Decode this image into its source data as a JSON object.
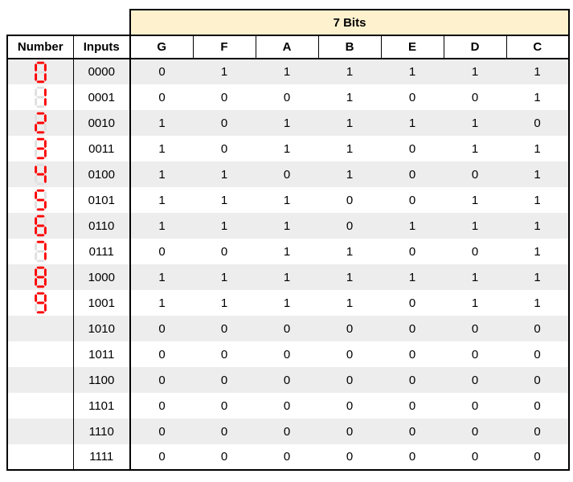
{
  "title_band": {
    "label": "7 Bits"
  },
  "columns": {
    "number": "Number",
    "inputs": "Inputs",
    "bits": [
      "G",
      "F",
      "A",
      "B",
      "E",
      "D",
      "C"
    ]
  },
  "rows": [
    {
      "digit": "0",
      "inputs": "0000",
      "bits": [
        0,
        1,
        1,
        1,
        1,
        1,
        1
      ]
    },
    {
      "digit": "1",
      "inputs": "0001",
      "bits": [
        0,
        0,
        0,
        1,
        0,
        0,
        1
      ]
    },
    {
      "digit": "2",
      "inputs": "0010",
      "bits": [
        1,
        0,
        1,
        1,
        1,
        1,
        0
      ]
    },
    {
      "digit": "3",
      "inputs": "0011",
      "bits": [
        1,
        0,
        1,
        1,
        0,
        1,
        1
      ]
    },
    {
      "digit": "4",
      "inputs": "0100",
      "bits": [
        1,
        1,
        0,
        1,
        0,
        0,
        1
      ]
    },
    {
      "digit": "5",
      "inputs": "0101",
      "bits": [
        1,
        1,
        1,
        0,
        0,
        1,
        1
      ]
    },
    {
      "digit": "6",
      "inputs": "0110",
      "bits": [
        1,
        1,
        1,
        0,
        1,
        1,
        1
      ]
    },
    {
      "digit": "7",
      "inputs": "0111",
      "bits": [
        0,
        0,
        1,
        1,
        0,
        0,
        1
      ]
    },
    {
      "digit": "8",
      "inputs": "1000",
      "bits": [
        1,
        1,
        1,
        1,
        1,
        1,
        1
      ]
    },
    {
      "digit": "9",
      "inputs": "1001",
      "bits": [
        1,
        1,
        1,
        1,
        0,
        1,
        1
      ]
    },
    {
      "digit": null,
      "inputs": "1010",
      "bits": [
        0,
        0,
        0,
        0,
        0,
        0,
        0
      ]
    },
    {
      "digit": null,
      "inputs": "1011",
      "bits": [
        0,
        0,
        0,
        0,
        0,
        0,
        0
      ]
    },
    {
      "digit": null,
      "inputs": "1100",
      "bits": [
        0,
        0,
        0,
        0,
        0,
        0,
        0
      ]
    },
    {
      "digit": null,
      "inputs": "1101",
      "bits": [
        0,
        0,
        0,
        0,
        0,
        0,
        0
      ]
    },
    {
      "digit": null,
      "inputs": "1110",
      "bits": [
        0,
        0,
        0,
        0,
        0,
        0,
        0
      ]
    },
    {
      "digit": null,
      "inputs": "1111",
      "bits": [
        0,
        0,
        0,
        0,
        0,
        0,
        0
      ]
    }
  ],
  "colors": {
    "band_bg": "#FDF1CE",
    "row_alt_bg": "#EDEDED",
    "segment_on": "#FF0000",
    "segment_off": "#E0E0E0",
    "border": "#000000"
  }
}
